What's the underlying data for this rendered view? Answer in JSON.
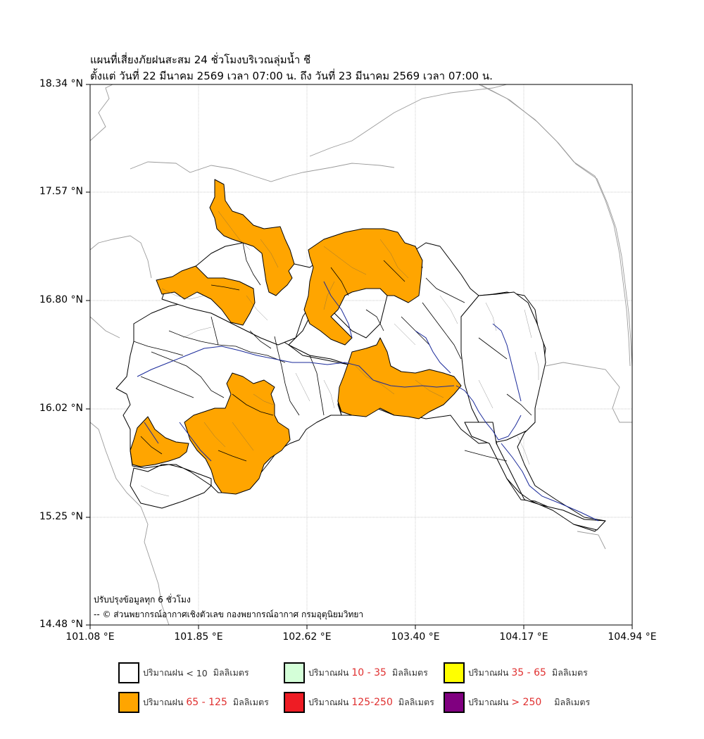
{
  "title": {
    "line1": "แผนที่เสี่ยงภัยฝนสะสม 24 ชั่วโมงบริเวณลุ่มน้ำ ชี",
    "line2": "ตั้งแต่ วันที่ 22 มีนาคม 2569 เวลา 07:00 น. ถึง วันที่ 23 มีนาคม 2569 เวลา 07:00 น."
  },
  "axes": {
    "lat_ticks": [
      "18.34 °N",
      "17.57 °N",
      "16.80 °N",
      "16.02 °N",
      "15.25 °N",
      "14.48 °N"
    ],
    "lon_ticks": [
      "101.08 °E",
      "101.85 °E",
      "102.62 °E",
      "103.40 °E",
      "104.17 °E",
      "104.94 °E"
    ],
    "lat_range": [
      14.48,
      18.34
    ],
    "lon_range": [
      101.08,
      104.94
    ],
    "grid": true
  },
  "notes": {
    "update": "ปรับปรุงข้อมูลทุก 6 ชั่วโมง",
    "credit": "-- © ส่วนพยากรณ์อากาศเชิงตัวเลข กองพยากรณ์อากาศ กรมอุตุนิยมวิทยา"
  },
  "colors": {
    "lt10": "#ffffff",
    "r10_35": "#d4ffd8",
    "r35_65": "#ffff00",
    "r65_125": "#ffa500",
    "r125_250": "#ee1c24",
    "gt250": "#800080",
    "river": "#1a2a9a",
    "basin_outline": "#000000",
    "country_border": "#9a9a9a"
  },
  "legend": [
    {
      "prefix": "ปริมาณฝน",
      "range": "< 10",
      "unit": "มิลลิเมตร",
      "color_key": "lt10"
    },
    {
      "prefix": "ปริมาณฝน",
      "range": "10 - 35",
      "unit": "มิลลิเมตร",
      "color_key": "r10_35"
    },
    {
      "prefix": "ปริมาณฝน",
      "range": "35 - 65",
      "unit": "มิลลิเมตร",
      "color_key": "r35_65"
    },
    {
      "prefix": "ปริมาณฝน",
      "range": "65 - 125",
      "unit": "มิลลิเมตร",
      "color_key": "r65_125"
    },
    {
      "prefix": "ปริมาณฝน",
      "range": "125-250",
      "unit": "มิลลิเมตร",
      "color_key": "r125_250"
    },
    {
      "prefix": "ปริมาณฝน",
      "range": "> 250",
      "unit": "มิลลิเมตร",
      "color_key": "gt250"
    }
  ]
}
